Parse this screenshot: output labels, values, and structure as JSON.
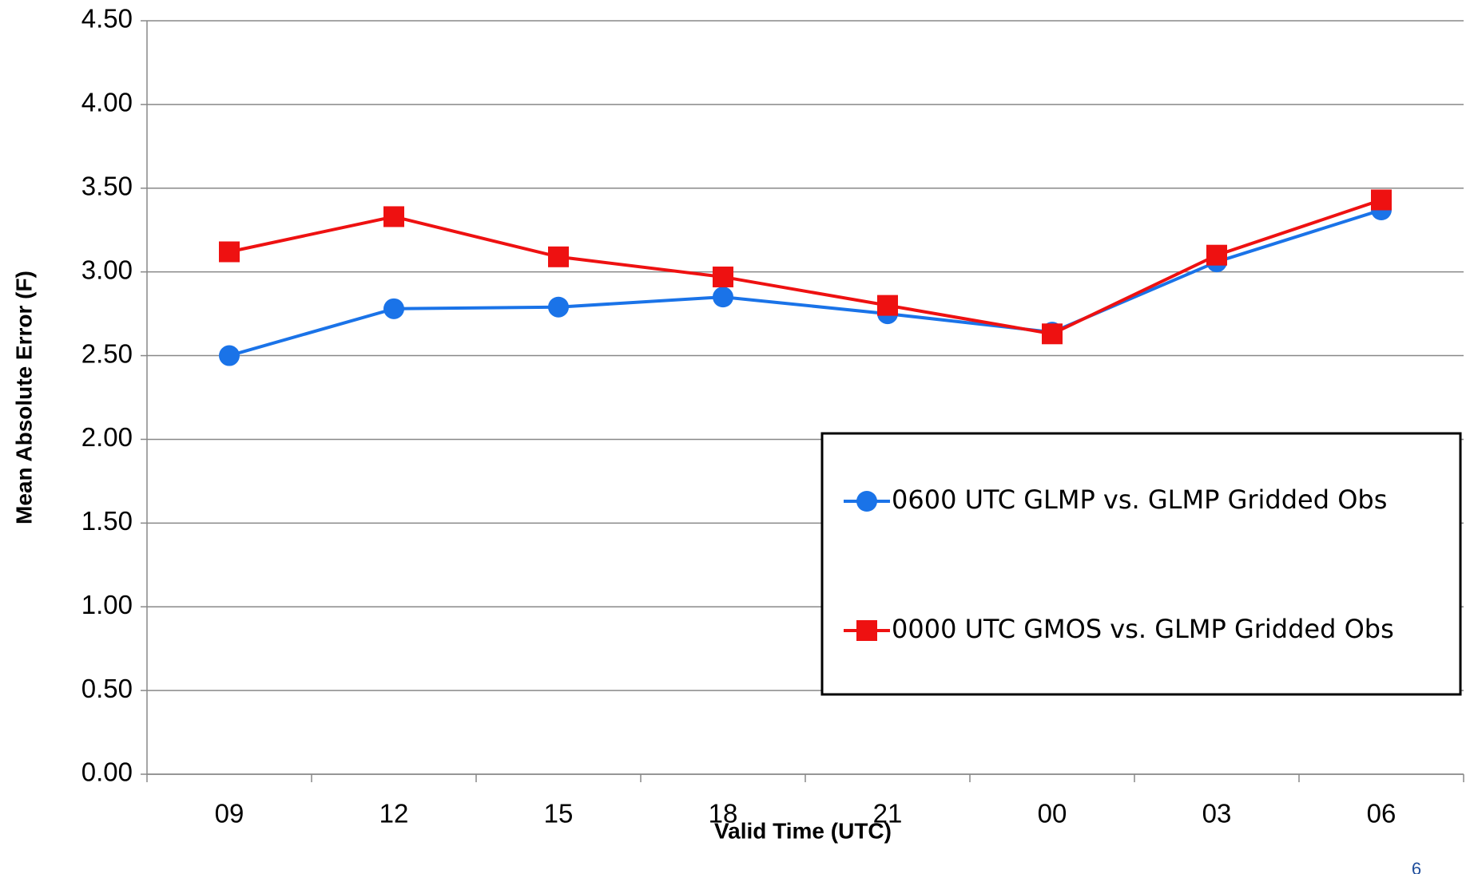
{
  "chart_data": {
    "type": "line",
    "categories": [
      "09",
      "12",
      "15",
      "18",
      "21",
      "00",
      "03",
      "06"
    ],
    "series": [
      {
        "name": "0600 UTC GLMP vs. GLMP Gridded Obs",
        "color": "#1a73e8",
        "marker": "circle",
        "values": [
          2.5,
          2.78,
          2.79,
          2.85,
          2.75,
          2.64,
          3.06,
          3.37
        ]
      },
      {
        "name": "0000 UTC GMOS vs. GLMP Gridded Obs",
        "color": "#ee1111",
        "marker": "square",
        "values": [
          3.12,
          3.33,
          3.09,
          2.97,
          2.8,
          2.63,
          3.1,
          3.43
        ]
      }
    ],
    "ylim": [
      0,
      4.5
    ],
    "yticks": [
      {
        "value": 0,
        "label": "0.00"
      },
      {
        "value": 0.5,
        "label": "0.50"
      },
      {
        "value": 1,
        "label": "1.00"
      },
      {
        "value": 1.5,
        "label": "1.50"
      },
      {
        "value": 2,
        "label": "2.00"
      },
      {
        "value": 2.5,
        "label": "2.50"
      },
      {
        "value": 3,
        "label": "3.00"
      },
      {
        "value": 3.5,
        "label": "3.50"
      },
      {
        "value": 4,
        "label": "4.00"
      },
      {
        "value": 4.5,
        "label": "4.50"
      }
    ],
    "grid": true,
    "x_label": "Valid Time (UTC)",
    "y_label": "Mean Absolute Error (F)",
    "legend": "right",
    "page_number": "6"
  }
}
